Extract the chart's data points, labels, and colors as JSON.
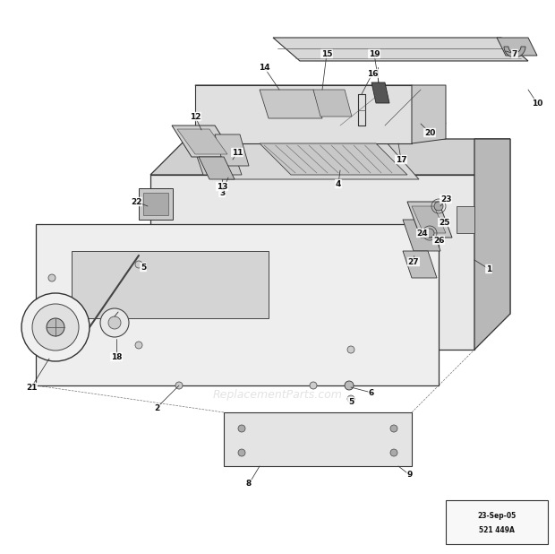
{
  "bg_color": "#ffffff",
  "line_color": "#333333",
  "stamp_text1": "23-Sep-05",
  "stamp_text2": "521 449A",
  "watermark_text": "ReplacementParts.com",
  "figure_width": 6.2,
  "figure_height": 6.18,
  "dpi": 100
}
